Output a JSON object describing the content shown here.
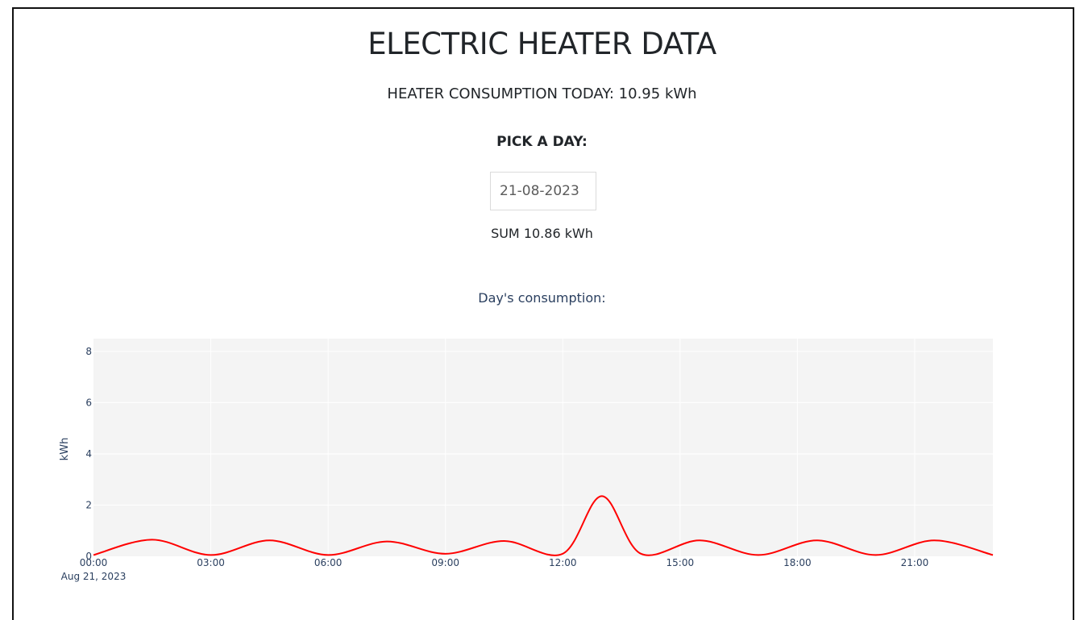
{
  "header": {
    "title": "ELECTRIC HEATER DATA",
    "today_label": "HEATER CONSUMPTION TODAY: 10.95 kWh"
  },
  "picker": {
    "label": "PICK A DAY:",
    "value": "21-08-2023"
  },
  "summary": {
    "sum_label": "SUM 10.86 kWh"
  },
  "chart_data": {
    "type": "line",
    "title": "Day's consumption:",
    "ylabel": "kWh",
    "xlabel": "",
    "x_date_label": "Aug 21, 2023",
    "x_tick_labels": [
      "00:00",
      "03:00",
      "06:00",
      "09:00",
      "12:00",
      "15:00",
      "18:00",
      "21:00"
    ],
    "y_ticks": [
      0,
      2,
      4,
      6,
      8
    ],
    "ylim": [
      0,
      8.5
    ],
    "xlim_hours": [
      0,
      23
    ],
    "grid": true,
    "line_color": "#ff0000",
    "plot_bg": "#f4f4f4",
    "series": [
      {
        "x": [
          "00:00",
          "01:30",
          "03:00",
          "04:30",
          "06:00",
          "07:30",
          "09:00",
          "10:30",
          "12:00",
          "13:00",
          "14:00",
          "15:30",
          "17:00",
          "18:30",
          "20:00",
          "21:30",
          "23:00"
        ],
        "values": [
          0.05,
          0.65,
          0.05,
          0.62,
          0.05,
          0.58,
          0.1,
          0.6,
          0.1,
          2.35,
          0.1,
          0.62,
          0.05,
          0.62,
          0.05,
          0.62,
          0.05
        ]
      }
    ]
  }
}
